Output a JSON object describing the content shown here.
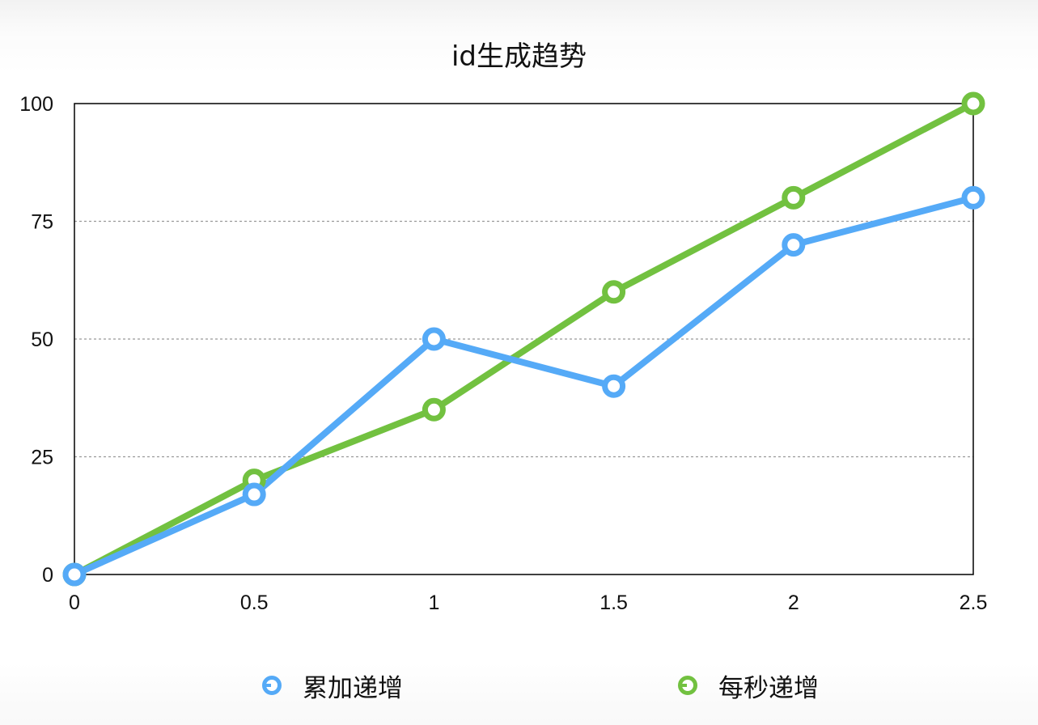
{
  "chart_data": {
    "type": "line",
    "title": "id生成趋势",
    "xlabel": "",
    "ylabel": "",
    "x": [
      0,
      0.5,
      1,
      1.5,
      2,
      2.5
    ],
    "x_tick_labels": [
      "0",
      "0.5",
      "1",
      "1.5",
      "2",
      "2.5"
    ],
    "y_tick_labels": [
      "0",
      "25",
      "50",
      "75",
      "100"
    ],
    "y_ticks": [
      0,
      25,
      50,
      75,
      100
    ],
    "xlim": [
      0,
      2.5
    ],
    "ylim": [
      0,
      100
    ],
    "grid": {
      "y": true,
      "style": "dotted",
      "x": false
    },
    "legend_position": "bottom",
    "series": [
      {
        "name": "累加递增",
        "color": "#55aaf7",
        "values": [
          0,
          17,
          50,
          40,
          70,
          80
        ],
        "marker": "hollow-circle"
      },
      {
        "name": "每秒递增",
        "color": "#72c140",
        "values": [
          0,
          20,
          35,
          60,
          80,
          100
        ],
        "marker": "hollow-circle"
      }
    ]
  },
  "legend": {
    "items": [
      {
        "label": "累加递增",
        "color": "#55aaf7"
      },
      {
        "label": "每秒递增",
        "color": "#72c140"
      }
    ]
  }
}
